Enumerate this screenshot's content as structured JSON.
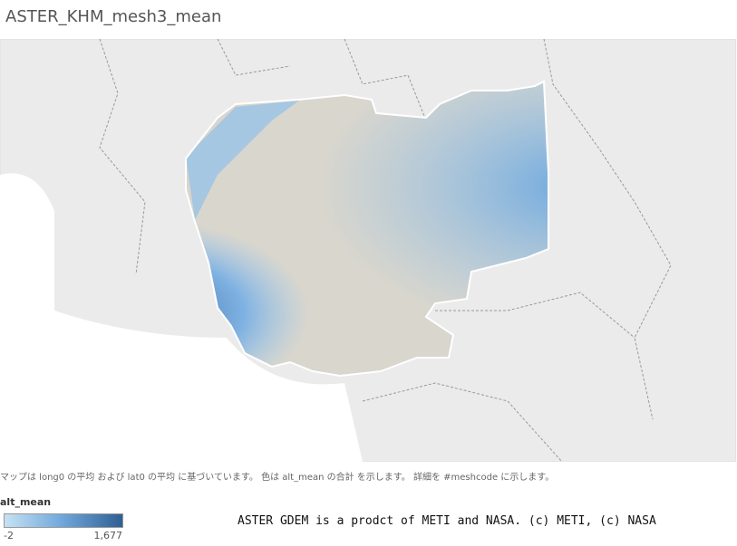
{
  "header": {
    "title": "ASTER_KHM_mesh3_mean"
  },
  "footnote": "マップは long0 の平均 および lat0 の平均 に基づいています。 色は alt_mean の合計 を示します。 詳細を #meshcode に示します。",
  "legend": {
    "title": "alt_mean",
    "min": -2,
    "max": {
      "value": 1677,
      "label": "1,677"
    }
  },
  "credit": "ASTER GDEM is a prodct of METI and NASA. (c) METI, (c) NASA"
}
